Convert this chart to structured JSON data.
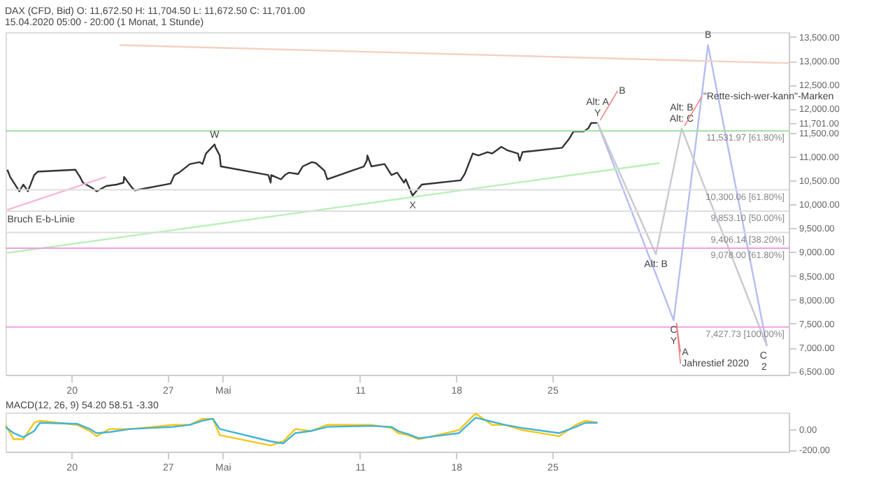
{
  "chart_data": [
    {
      "type": "line",
      "title": "DAX (CFD, Bid)  O: 11,672.50  H: 11,704.50  L: 11,672.50  C: 11,701.00",
      "subtitle": "15.04.2020 05:00 - 20:00  (1 Monat, 1 Stunde)",
      "series": [
        {
          "color": "#333333",
          "x": [
            "2020-04-15T08:00",
            "2020-04-15T13:00",
            "2020-04-16T05:00",
            "2020-04-16T12:00",
            "2020-04-16T20:00",
            "2020-04-17T07:00",
            "2020-04-17T13:00",
            "2020-04-20T07:00",
            "2020-04-20T15:00",
            "2020-04-20T20:00",
            "2020-04-21T12:00",
            "2020-04-21T20:00",
            "2020-04-22T13:00",
            "2020-04-23T07:00",
            "2020-04-23T19:00",
            "2020-04-23T20:00",
            "2020-04-24T10:00",
            "2020-04-24T15:00",
            "2020-04-27T05:00",
            "2020-04-27T12:00",
            "2020-04-27T20:00",
            "2020-04-28T15:00",
            "2020-04-29T08:00",
            "2020-04-29T13:00",
            "2020-04-29T19:00",
            "2020-04-30T10:00",
            "2020-04-30T12:00",
            "2020-04-30T19:00",
            "2020-04-30T21:00",
            "2020-05-04T08:00",
            "2020-05-04T12:00",
            "2020-05-04T13:00",
            "2020-05-05T06:00",
            "2020-05-05T13:00",
            "2020-05-05T20:00",
            "2020-05-06T12:00",
            "2020-05-06T20:00",
            "2020-05-07T12:00",
            "2020-05-07T19:00",
            "2020-05-08T10:00",
            "2020-05-08T15:00",
            "2020-05-11T07:00",
            "2020-05-11T12:00",
            "2020-05-11T13:00",
            "2020-05-11T20:00",
            "2020-05-12T19:00",
            "2020-05-13T07:00",
            "2020-05-13T17:00",
            "2020-05-14T05:00",
            "2020-05-14T08:00",
            "2020-05-14T20:00",
            "2020-05-15T12:00",
            "2020-05-18T08:00",
            "2020-05-18T15:00",
            "2020-05-19T05:00",
            "2020-05-19T15:00",
            "2020-05-20T07:00",
            "2020-05-20T15:00",
            "2020-05-21T07:00",
            "2020-05-21T17:00",
            "2020-05-22T12:00",
            "2020-05-22T15:00",
            "2020-05-22T20:00",
            "2020-05-25T17:00",
            "2020-05-26T05:00",
            "2020-05-26T13:00",
            "2020-05-27T07:00",
            "2020-05-27T15:00",
            "2020-05-27T20:00",
            "2020-05-28T07:00"
          ],
          "values": [
            10720,
            10570,
            10270,
            10410,
            10270,
            10610,
            10680,
            10720,
            10570,
            10450,
            10340,
            10270,
            10380,
            10410,
            10450,
            10570,
            10340,
            10290,
            10430,
            10610,
            10660,
            10840,
            10880,
            10840,
            11060,
            11250,
            11180,
            11020,
            10790,
            10610,
            10450,
            10610,
            10520,
            10610,
            10660,
            10630,
            10790,
            10880,
            10860,
            10700,
            10520,
            10790,
            10910,
            11020,
            10790,
            10840,
            10610,
            10660,
            10450,
            10520,
            10180,
            10410,
            10500,
            10630,
            11060,
            11020,
            11090,
            11060,
            11200,
            11130,
            11060,
            10910,
            11090,
            11180,
            11360,
            11520,
            11520,
            11590,
            11700,
            11700
          ]
        },
        {
          "color": "#b4bcf2",
          "x": [
            "2020-05-28T07:00",
            "2020-06-02T20:00",
            "2020-06-05T08:00",
            "2020-06-09T15:00"
          ],
          "values": [
            11700,
            7570,
            13330,
            7030
          ]
        },
        {
          "color": "#c8c8d0",
          "x": [
            "2020-05-28T07:00",
            "2020-06-01T13:00",
            "2020-06-03T10:00",
            "2020-06-09T15:00"
          ],
          "values": [
            11700,
            8950,
            11580,
            7030
          ]
        },
        {
          "color": "#b8f0b8",
          "x": [
            "2020-04-15T08:00",
            "2020-06-01T19:00"
          ],
          "values": [
            8980,
            10860
          ]
        },
        {
          "color": "#f5b8d8",
          "x": [
            "2020-04-15T08:00",
            "2020-04-22T12:00"
          ],
          "values": [
            9880,
            10570
          ]
        },
        {
          "color": "#f5d0c0",
          "x": [
            "2020-04-23T12:00",
            "2020-06-11T05:00"
          ],
          "values": [
            13330,
            12950
          ]
        }
      ],
      "xlim": [
        "2020-04-15T05:00",
        "2020-06-11T05:00"
      ],
      "ylim": [
        6430,
        13600
      ],
      "xticks": [
        {
          "value": "2020-04-20",
          "label": "20"
        },
        {
          "value": "2020-04-27",
          "label": "27"
        },
        {
          "value": "2020-05-01",
          "label": "Mai"
        },
        {
          "value": "2020-05-11",
          "label": "11"
        },
        {
          "value": "2020-05-18",
          "label": "18"
        },
        {
          "value": "2020-05-25",
          "label": "25"
        }
      ],
      "yticks": [
        {
          "value": 6500,
          "label": "6,500.00"
        },
        {
          "value": 7000,
          "label": "7,000.00"
        },
        {
          "value": 7500,
          "label": "7,500.00"
        },
        {
          "value": 8000,
          "label": "8,000.00"
        },
        {
          "value": 8500,
          "label": "8,500.00"
        },
        {
          "value": 9000,
          "label": "9,000.00"
        },
        {
          "value": 9500,
          "label": "9,500.00"
        },
        {
          "value": 10000,
          "label": "10,000.00"
        },
        {
          "value": 10500,
          "label": "10,500.00"
        },
        {
          "value": 11000,
          "label": "11,000.00"
        },
        {
          "value": 11500,
          "label": "11,500.00"
        },
        {
          "value": 11701,
          "label": "11,701.00"
        },
        {
          "value": 12000,
          "label": "12,000.00"
        },
        {
          "value": 12500,
          "label": "12,500.00"
        },
        {
          "value": 13000,
          "label": "13,000.00"
        },
        {
          "value": 13500,
          "label": "13,500.00"
        }
      ],
      "ref_lines": [
        {
          "axis": "y",
          "value": 11531.97,
          "label": "11,531.97 [61.80%]",
          "color": "#9ee09e"
        },
        {
          "axis": "y",
          "value": 10300.06,
          "label": "10,300.06 [61.80%]",
          "color": "#dddddd"
        },
        {
          "axis": "y",
          "value": 9853.1,
          "label": "9,853.10 [50.00%]",
          "color": "#dddddd"
        },
        {
          "axis": "y",
          "value": 9406.14,
          "label": "9,406.14 [38.20%]",
          "color": "#dddddd"
        },
        {
          "axis": "y",
          "value": 9078.0,
          "label": "9,078.00 [61.80%]",
          "color": "#f0a0e0"
        },
        {
          "axis": "y",
          "value": 7427.73,
          "label": "7,427.73 [100.00%]",
          "color": "#f0a0e0"
        }
      ],
      "annotations": [
        {
          "text": "W",
          "x": "2020-04-30T10:00",
          "y": 11250
        },
        {
          "text": "X",
          "x": "2020-05-14T20:00",
          "y": 10180
        },
        {
          "text": "Y",
          "x": "2020-05-28T07:00",
          "y": 11700
        },
        {
          "text": "Alt: A",
          "x": "2020-05-28T07:00",
          "y": 11700
        },
        {
          "text": "B",
          "x": "2020-05-28T07:00",
          "y": 11700
        },
        {
          "text": "Alt: C",
          "x": "2020-06-03T10:00",
          "y": 11580
        },
        {
          "text": "Alt: B",
          "x": "2020-06-03T10:00",
          "y": 11580
        },
        {
          "text": "\"Rette-sich-wer-kann\"-Marken",
          "x": "2020-06-03T10:00",
          "y": 11580
        },
        {
          "text": "B",
          "x": "2020-06-05T08:00",
          "y": 13330
        },
        {
          "text": "Alt: B",
          "x": "2020-06-01T13:00",
          "y": 8950
        },
        {
          "text": "C",
          "x": "2020-06-02T20:00",
          "y": 7570
        },
        {
          "text": "Y",
          "x": "2020-06-02T20:00",
          "y": 7570
        },
        {
          "text": "A",
          "x": "2020-06-02T20:00",
          "y": 7570
        },
        {
          "text": "Jahrestief 2020",
          "x": "2020-06-02T20:00",
          "y": 7570
        },
        {
          "text": "C",
          "x": "2020-06-09T15:00",
          "y": 7030
        },
        {
          "text": "2",
          "x": "2020-06-09T15:00",
          "y": 7030
        },
        {
          "text": "Bruch E-b-Linie",
          "x": "2020-04-15T08:00",
          "y": 9880
        }
      ],
      "grid": false,
      "marker": "none",
      "line_style": "solid"
    },
    {
      "type": "line",
      "title": "MACD(12, 26, 9)  54.20  58.51  -3.30",
      "series": [
        {
          "color": "#f5c518",
          "x": [
            "2020-04-15T05:00",
            "2020-04-15T19:00",
            "2020-04-16T12:00",
            "2020-04-17T07:00",
            "2020-04-17T17:00",
            "2020-04-20T10:00",
            "2020-04-21T08:00",
            "2020-04-21T20:00",
            "2020-04-22T19:00",
            "2020-04-24T07:00",
            "2020-04-27T10:00",
            "2020-04-28T15:00",
            "2020-04-29T13:00",
            "2020-04-30T07:00",
            "2020-04-30T19:00",
            "2020-05-04T12:00",
            "2020-05-05T10:00",
            "2020-05-06T07:00",
            "2020-05-07T10:00",
            "2020-05-08T15:00",
            "2020-05-11T19:00",
            "2020-05-13T07:00",
            "2020-05-13T19:00",
            "2020-05-14T12:00",
            "2020-05-15T07:00",
            "2020-05-18T05:00",
            "2020-05-19T10:00",
            "2020-05-20T15:00",
            "2020-05-21T13:00",
            "2020-05-22T19:00",
            "2020-05-25T12:00",
            "2020-05-26T17:00",
            "2020-05-27T10:00",
            "2020-05-28T07:00"
          ],
          "values": [
            40,
            -100,
            -100,
            60,
            80,
            40,
            -20,
            -70,
            0,
            0,
            40,
            40,
            100,
            100,
            -60,
            -160,
            -120,
            0,
            -20,
            40,
            40,
            10,
            -40,
            -60,
            -100,
            -10,
            150,
            40,
            40,
            -10,
            -70,
            40,
            80,
            60
          ]
        },
        {
          "color": "#3fb4d8",
          "x": [
            "2020-04-15T05:00",
            "2020-04-15T19:00",
            "2020-04-16T12:00",
            "2020-04-17T07:00",
            "2020-04-17T17:00",
            "2020-04-20T10:00",
            "2020-04-21T08:00",
            "2020-04-21T20:00",
            "2020-04-22T19:00",
            "2020-04-24T07:00",
            "2020-04-27T10:00",
            "2020-04-28T15:00",
            "2020-04-29T13:00",
            "2020-04-30T07:00",
            "2020-04-30T19:00",
            "2020-05-04T12:00",
            "2020-05-05T10:00",
            "2020-05-06T07:00",
            "2020-05-07T10:00",
            "2020-05-08T15:00",
            "2020-05-11T19:00",
            "2020-05-13T07:00",
            "2020-05-13T19:00",
            "2020-05-14T12:00",
            "2020-05-15T07:00",
            "2020-05-18T05:00",
            "2020-05-19T10:00",
            "2020-05-20T15:00",
            "2020-05-21T13:00",
            "2020-05-22T19:00",
            "2020-05-25T12:00",
            "2020-05-26T17:00",
            "2020-05-27T10:00",
            "2020-05-28T07:00"
          ],
          "values": [
            20,
            -40,
            -80,
            -20,
            60,
            50,
            0,
            -40,
            -30,
            0,
            20,
            40,
            80,
            100,
            0,
            -120,
            -140,
            -40,
            -20,
            20,
            30,
            20,
            -20,
            -50,
            -90,
            -40,
            110,
            70,
            40,
            10,
            -40,
            20,
            60,
            60
          ]
        }
      ],
      "xlim": [
        "2020-04-15T05:00",
        "2020-06-11T05:00"
      ],
      "ylim": [
        -220,
        160
      ],
      "xticks": [
        {
          "value": "2020-04-20",
          "label": "20"
        },
        {
          "value": "2020-04-27",
          "label": "27"
        },
        {
          "value": "2020-05-01",
          "label": "Mai"
        },
        {
          "value": "2020-05-11",
          "label": "11"
        },
        {
          "value": "2020-05-18",
          "label": "18"
        },
        {
          "value": "2020-05-25",
          "label": "25"
        }
      ],
      "yticks": [
        {
          "value": -200,
          "label": "-200.00"
        },
        {
          "value": 0,
          "label": "0.00"
        }
      ],
      "grid": false,
      "marker": "none",
      "line_style": "solid"
    }
  ]
}
